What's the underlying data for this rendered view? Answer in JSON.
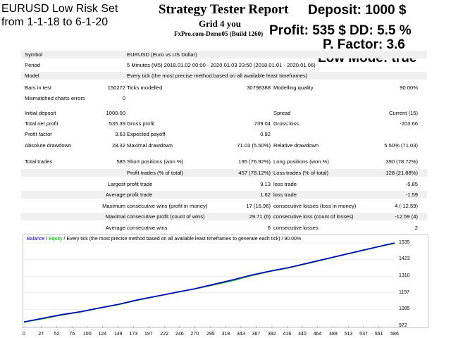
{
  "overlay": {
    "set_title": "EURUSD Low Risk Set",
    "date_range": "from 1-1-18 to 6-1-20",
    "deposit": "Deposit: 1000 $",
    "profit_dd": "Profit: 535 $ DD: 5.5 %",
    "pfactor": "P. Factor: 3.6",
    "low_mode": "Low Mode: true"
  },
  "header": {
    "title": "Strategy Tester Report",
    "expert": "Grid 4 you",
    "server": "FxPro.com-Demo05 (Build 1260)"
  },
  "info": [
    {
      "label": "Symbol",
      "value": "EURUSD (Euro vs US Dollar)"
    },
    {
      "label": "Period",
      "value": "5 Minutes (M5) 2018.01.02 00:00 - 2020.01.03 23:50 (2018.01.01 - 2020.01.06)"
    },
    {
      "label": "Model",
      "value": "Every tick (the most precise method based on all available least timeframes)"
    }
  ],
  "bars": {
    "label": "Bars in test",
    "value": "150272",
    "ticks_label": "Ticks modelled",
    "ticks_value": "30798388",
    "quality_label": "Modelling quality",
    "quality_value": "90.00%"
  },
  "mismatch": {
    "label": "Mismatched charts errors",
    "value": "0"
  },
  "results": {
    "initial_deposit_label": "Initial deposit",
    "initial_deposit": "1000.00",
    "spread_label": "Spread",
    "spread": "Current (15)",
    "net_profit_label": "Total net profit",
    "net_profit": "535.39",
    "gross_profit_label": "Gross profit",
    "gross_profit": "739.04",
    "gross_loss_label": "Gross loss",
    "gross_loss": "-203.66",
    "profit_factor_label": "Profit factor",
    "profit_factor": "3.63",
    "expected_payoff_label": "Expected payoff",
    "expected_payoff": "0.92",
    "abs_dd_label": "Absolute drawdown",
    "abs_dd": "28.32",
    "max_dd_label": "Maximal drawdown",
    "max_dd": "71.03 (5.50%)",
    "rel_dd_label": "Relative drawdown",
    "rel_dd": "5.50% (71.03)"
  },
  "trades": {
    "total_label": "Total trades",
    "total": "585",
    "short_label": "Short positions (won %)",
    "short": "195 (76.92%)",
    "long_label": "Long positions (won %)",
    "long": "390 (78.72%)",
    "profit_trades_label": "Profit trades (% of total)",
    "profit_trades": "457 (78.12%)",
    "loss_trades_label": "Loss trades (% of total)",
    "loss_trades": "128 (21.88%)",
    "largest_label": "Largest",
    "avg_label": "Average",
    "maximum_label": "Maximum",
    "maximal_label": "Maximal",
    "average2_label": "Average",
    "largest_profit_label": "profit trade",
    "largest_profit": "9.13",
    "largest_loss_label": "loss trade",
    "largest_loss": "-5.85",
    "avg_profit_label": "profit trade",
    "avg_profit": "1.62",
    "avg_loss_label": "loss trade",
    "avg_loss": "-1.59",
    "max_cons_wins_label": "consecutive wins (profit in money)",
    "max_cons_wins": "17 (16.96)",
    "max_cons_losses_label": "consecutive losses (loss in money)",
    "max_cons_losses": "4 (-12.59)",
    "maximal_cons_profit_label": "consecutive profit (count of wins)",
    "maximal_cons_profit": "29.71 (6)",
    "maximal_cons_loss_label": "consecutive loss (count of losses)",
    "maximal_cons_loss": "-12.59 (4)",
    "avg_cons_wins_label": "consecutive wins",
    "avg_cons_wins": "6",
    "avg_cons_losses_label": "consecutive losses",
    "avg_cons_losses": "2"
  },
  "chart_data": {
    "type": "line",
    "legend": {
      "balance": "Balance",
      "sep1": " / ",
      "equity": "Equity",
      "rest": " / Every tick (the most precise method based on all available least timeframes to generate each tick) / 90.00%"
    },
    "xlabel": "",
    "ylabel": "",
    "x_ticks": [
      "0",
      "27",
      "52",
      "76",
      "100",
      "124",
      "149",
      "173",
      "197",
      "222",
      "246",
      "270",
      "295",
      "319",
      "343",
      "367",
      "392",
      "416",
      "440",
      "464",
      "489",
      "513",
      "537",
      "561",
      "586"
    ],
    "y_ticks": [
      "1535",
      "1423",
      "1310",
      "1197",
      "1085",
      "972"
    ],
    "ylim": [
      972,
      1535
    ],
    "xlim": [
      0,
      586
    ],
    "series": [
      {
        "name": "Balance",
        "color": "#0000c8",
        "x": [
          0,
          30,
          60,
          90,
          120,
          150,
          180,
          210,
          240,
          270,
          300,
          330,
          360,
          390,
          420,
          450,
          480,
          510,
          540,
          570,
          586
        ],
        "y": [
          1000,
          1025,
          1050,
          1070,
          1095,
          1120,
          1150,
          1175,
          1200,
          1225,
          1255,
          1285,
          1318,
          1345,
          1370,
          1400,
          1430,
          1460,
          1490,
          1520,
          1535
        ]
      },
      {
        "name": "Equity",
        "color": "#00a000",
        "x": [
          0,
          30,
          60,
          90,
          120,
          150,
          180,
          210,
          240,
          270,
          300,
          330,
          360,
          390,
          420,
          450,
          480,
          510,
          540,
          570,
          586
        ],
        "y": [
          997,
          1020,
          1046,
          1066,
          1092,
          1116,
          1146,
          1172,
          1197,
          1222,
          1250,
          1278,
          1312,
          1342,
          1366,
          1396,
          1426,
          1457,
          1487,
          1517,
          1530
        ]
      }
    ],
    "colors": {
      "balance": "#0000c8",
      "equity": "#00a000"
    }
  }
}
